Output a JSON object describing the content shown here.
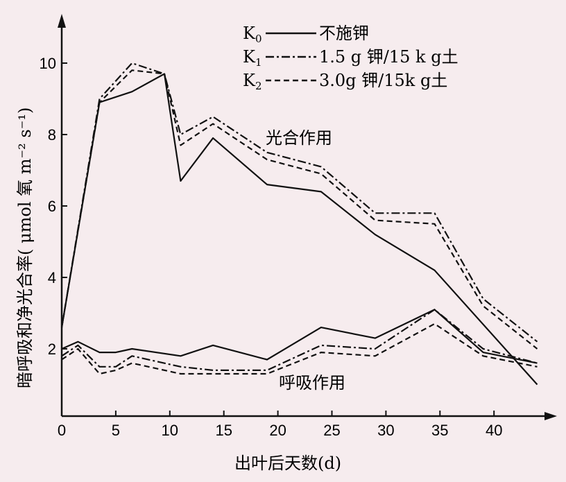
{
  "chart_data": {
    "type": "line",
    "title": "",
    "xlabel": "出叶后天数(d)",
    "ylabel": "暗呼吸和净光合率( μmol 氧 m⁻² s⁻¹)",
    "xlim": [
      0,
      45
    ],
    "ylim": [
      0,
      11
    ],
    "xticks": [
      0,
      5,
      10,
      15,
      20,
      25,
      30,
      35,
      40
    ],
    "yticks": [
      2,
      4,
      6,
      8,
      10
    ],
    "annotations": {
      "photosynthesis": "光合作用",
      "respiration": "呼吸作用"
    },
    "legend_position": "top-right",
    "legend": [
      {
        "key": "K0",
        "label": "不施钾",
        "style": "solid"
      },
      {
        "key": "K1",
        "label": "1.5 g 钾/15 k g土",
        "style": "dashdot"
      },
      {
        "key": "K2",
        "label": "3.0g 钾/15k g土",
        "style": "dashed"
      }
    ],
    "series": [
      {
        "name": "K0 光合作用",
        "style": "solid",
        "x": [
          0,
          3.5,
          6.5,
          9.5,
          11,
          14,
          19,
          24,
          29,
          34.5,
          44
        ],
        "y": [
          2.6,
          8.9,
          9.2,
          9.7,
          6.7,
          7.9,
          6.6,
          6.4,
          5.2,
          4.2,
          1.0
        ]
      },
      {
        "name": "K1 光合作用",
        "style": "dashdot",
        "x": [
          0,
          3.5,
          6.5,
          9.5,
          11,
          14,
          19,
          24,
          29,
          34.5,
          39,
          44
        ],
        "y": [
          2.6,
          9.0,
          10.0,
          9.7,
          8.0,
          8.5,
          7.5,
          7.1,
          5.8,
          5.8,
          3.4,
          2.2
        ]
      },
      {
        "name": "K2 光合作用",
        "style": "dashed",
        "x": [
          0,
          3.5,
          6.5,
          9.5,
          11,
          14,
          19,
          24,
          29,
          34.5,
          39,
          44
        ],
        "y": [
          2.6,
          8.9,
          9.8,
          9.7,
          7.7,
          8.3,
          7.3,
          6.9,
          5.6,
          5.5,
          3.2,
          2.0
        ]
      },
      {
        "name": "K0 呼吸作用",
        "style": "solid",
        "x": [
          0,
          1.5,
          3.5,
          5,
          6.5,
          11,
          14,
          19,
          24,
          29,
          34.5,
          39,
          44
        ],
        "y": [
          2.0,
          2.2,
          1.9,
          1.9,
          2.0,
          1.8,
          2.1,
          1.7,
          2.6,
          2.3,
          3.1,
          1.9,
          1.6
        ]
      },
      {
        "name": "K1 呼吸作用",
        "style": "dashdot",
        "x": [
          0,
          1.5,
          3.5,
          5,
          6.5,
          11,
          14,
          19,
          24,
          29,
          34.5,
          39,
          44
        ],
        "y": [
          1.8,
          2.1,
          1.5,
          1.5,
          1.8,
          1.5,
          1.4,
          1.4,
          2.1,
          2.0,
          3.1,
          2.0,
          1.6
        ]
      },
      {
        "name": "K2 呼吸作用",
        "style": "dashed",
        "x": [
          0,
          1.5,
          3.5,
          5,
          6.5,
          11,
          14,
          19,
          24,
          29,
          34.5,
          39,
          44
        ],
        "y": [
          1.7,
          2.0,
          1.3,
          1.4,
          1.6,
          1.3,
          1.3,
          1.3,
          1.9,
          1.8,
          2.7,
          1.8,
          1.5
        ]
      }
    ]
  },
  "legend_text": {
    "k0": "K",
    "k0_sub": "0",
    "k0_label": "不施钾",
    "k1": "K",
    "k1_sub": "1",
    "k1_label": "1.5 g 钾/15 k g土",
    "k2": "K",
    "k2_sub": "2",
    "k2_label": "3.0g 钾/15k g土"
  }
}
